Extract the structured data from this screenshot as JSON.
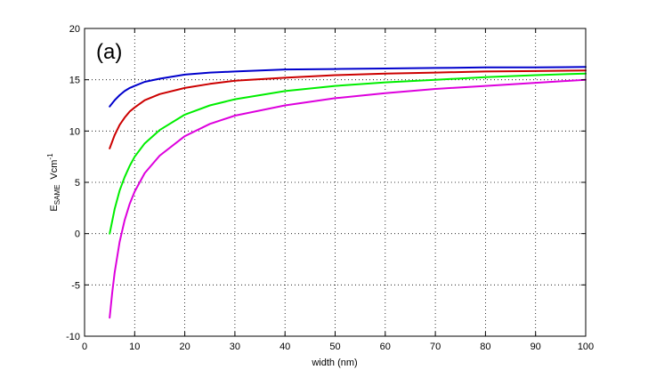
{
  "chart_data": {
    "type": "line",
    "panel_label": "(a)",
    "xlabel": "width (nm)",
    "ylabel": {
      "main": "E",
      "subscript": "SAME",
      "unit": "Vcm",
      "exponent": "-1"
    },
    "xlim": [
      0,
      100
    ],
    "ylim": [
      -10,
      20
    ],
    "xticks": [
      0,
      10,
      20,
      30,
      40,
      50,
      60,
      70,
      80,
      90,
      100
    ],
    "yticks": [
      -10,
      -5,
      0,
      5,
      10,
      15,
      20
    ],
    "grid": true,
    "legend": "none",
    "series": [
      {
        "color": "#0000cc",
        "x": [
          5,
          6,
          7,
          8,
          9,
          10,
          12,
          15,
          20,
          25,
          30,
          40,
          50,
          60,
          70,
          80,
          90,
          100
        ],
        "y": [
          12.4,
          13.0,
          13.5,
          13.9,
          14.2,
          14.4,
          14.8,
          15.1,
          15.5,
          15.7,
          15.8,
          16.0,
          16.05,
          16.1,
          16.15,
          16.2,
          16.2,
          16.25
        ]
      },
      {
        "color": "#cc0000",
        "x": [
          5,
          6,
          7,
          8,
          9,
          10,
          12,
          15,
          20,
          25,
          30,
          40,
          50,
          60,
          70,
          80,
          90,
          100
        ],
        "y": [
          8.3,
          9.6,
          10.6,
          11.3,
          11.9,
          12.3,
          13.0,
          13.6,
          14.2,
          14.6,
          14.9,
          15.2,
          15.45,
          15.6,
          15.7,
          15.8,
          15.85,
          15.9
        ]
      },
      {
        "color": "#00ee00",
        "x": [
          5,
          6,
          7,
          8,
          9,
          10,
          12,
          15,
          20,
          25,
          30,
          40,
          50,
          60,
          70,
          80,
          90,
          100
        ],
        "y": [
          0.0,
          2.4,
          4.2,
          5.5,
          6.6,
          7.5,
          8.8,
          10.1,
          11.6,
          12.5,
          13.1,
          13.9,
          14.4,
          14.75,
          15.0,
          15.25,
          15.45,
          15.6
        ]
      },
      {
        "color": "#dd00dd",
        "x": [
          5,
          5.5,
          6,
          7,
          8,
          9,
          10,
          12,
          15,
          20,
          25,
          30,
          40,
          50,
          60,
          70,
          80,
          90,
          100
        ],
        "y": [
          -8.2,
          -5.8,
          -3.8,
          -0.8,
          1.3,
          2.9,
          4.1,
          5.9,
          7.6,
          9.5,
          10.7,
          11.5,
          12.5,
          13.2,
          13.7,
          14.1,
          14.4,
          14.7,
          15.0
        ]
      }
    ]
  }
}
